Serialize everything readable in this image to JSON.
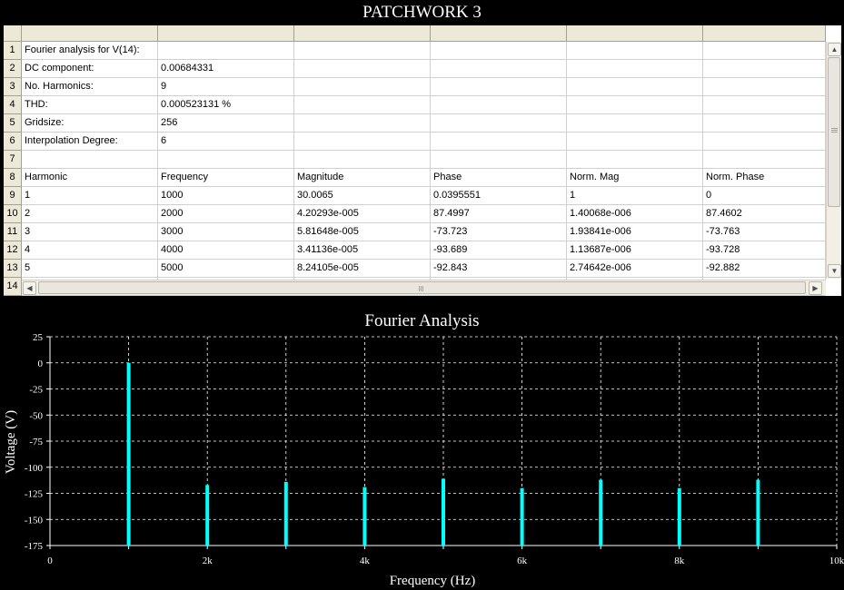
{
  "window": {
    "title": "PATCHWORK 3"
  },
  "grid": {
    "row_numbers": [
      "1",
      "2",
      "3",
      "4",
      "5",
      "6",
      "7",
      "8",
      "9",
      "10",
      "11",
      "12",
      "13",
      "14"
    ],
    "rows": [
      [
        "Fourier analysis for V(14):",
        "",
        "",
        "",
        "",
        ""
      ],
      [
        "DC component:",
        "0.00684331",
        "",
        "",
        "",
        ""
      ],
      [
        "No. Harmonics:",
        "9",
        "",
        "",
        "",
        ""
      ],
      [
        "THD:",
        "0.000523131 %",
        "",
        "",
        "",
        ""
      ],
      [
        "Gridsize:",
        "256",
        "",
        "",
        "",
        ""
      ],
      [
        "Interpolation Degree:",
        "6",
        "",
        "",
        "",
        ""
      ],
      [
        "",
        "",
        "",
        "",
        "",
        ""
      ],
      [
        "Harmonic",
        "Frequency",
        "Magnitude",
        "Phase",
        "Norm. Mag",
        "Norm. Phase"
      ],
      [
        "1",
        "1000",
        "30.0065",
        "0.0395551",
        "1",
        "0"
      ],
      [
        "2",
        "2000",
        "4.20293e-005",
        "87.4997",
        "1.40068e-006",
        "87.4602"
      ],
      [
        "3",
        "3000",
        "5.81648e-005",
        "-73.723",
        "1.93841e-006",
        "-73.763"
      ],
      [
        "4",
        "4000",
        "3.41136e-005",
        "-93.689",
        "1.13687e-006",
        "-93.728"
      ],
      [
        "5",
        "5000",
        "8.24105e-005",
        "-92.843",
        "2.74642e-006",
        "-92.882"
      ]
    ],
    "scroll_icons": {
      "up": "arrow-up-icon",
      "down": "arrow-down-icon",
      "left": "arrow-left-icon",
      "right": "arrow-right-icon"
    }
  },
  "chart_data": {
    "type": "bar",
    "title": "Fourier Analysis",
    "xlabel": "Frequency (Hz)",
    "ylabel": "Voltage (V)",
    "xlim": [
      0,
      10000
    ],
    "ylim": [
      -175,
      25
    ],
    "yticks": [
      25,
      0,
      -25,
      -50,
      -75,
      -100,
      -125,
      -150,
      -175
    ],
    "xticks": [
      0,
      2000,
      4000,
      6000,
      8000,
      10000
    ],
    "xtick_labels": [
      "0",
      "2k",
      "4k",
      "6k",
      "8k",
      "10k"
    ],
    "grid": true,
    "background": "#000000",
    "bar_color": "#00ffff",
    "series": [
      {
        "x": [
          1000,
          2000,
          3000,
          4000,
          5000,
          6000,
          7000,
          8000,
          9000
        ],
        "values": [
          0,
          -117,
          -114,
          -119,
          -111,
          -120,
          -112,
          -120,
          -112
        ]
      }
    ]
  }
}
